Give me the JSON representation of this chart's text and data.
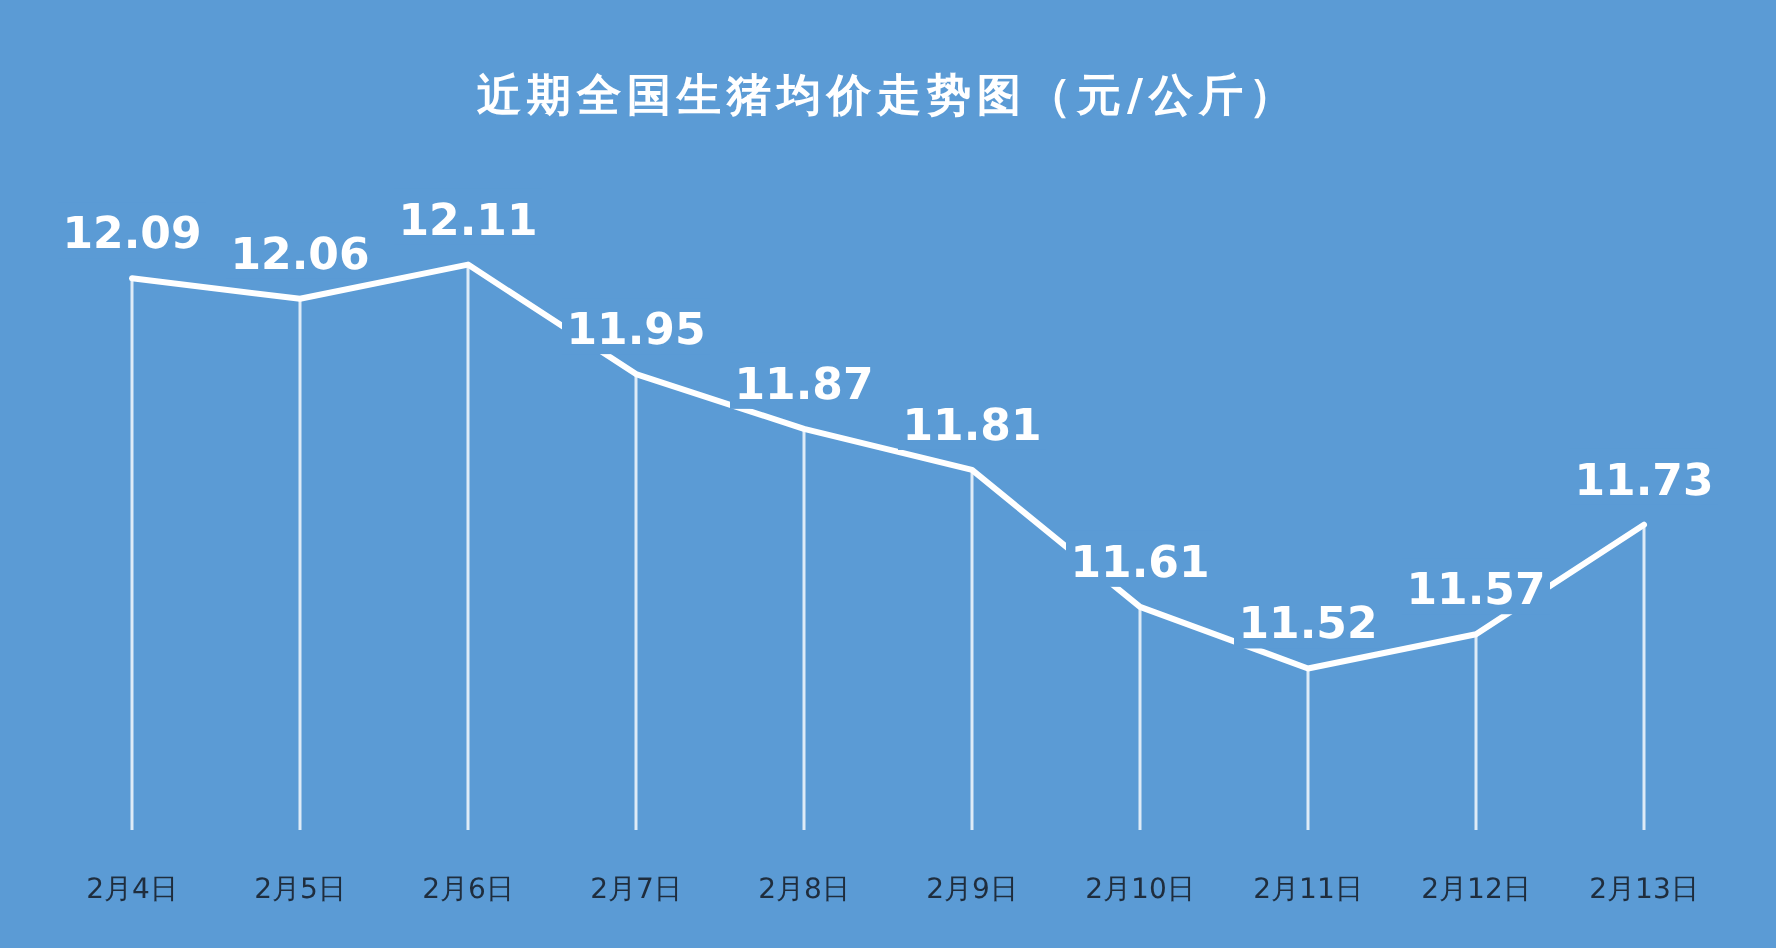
{
  "chart_data": {
    "type": "line",
    "title": "近期全国生猪均价走势图（元/公斤）",
    "categories": [
      "2月4日",
      "2月5日",
      "2月6日",
      "2月7日",
      "2月8日",
      "2月9日",
      "2月10日",
      "2月11日",
      "2月12日",
      "2月13日"
    ],
    "series": [
      {
        "color": "#ffffff",
        "values": [
          12.09,
          12.06,
          12.11,
          11.95,
          11.87,
          11.81,
          11.61,
          11.52,
          11.57,
          11.73
        ]
      }
    ],
    "data_labels": true,
    "grid": "x",
    "tick_labels": "x",
    "marker": "none",
    "line_style": "solid"
  }
}
